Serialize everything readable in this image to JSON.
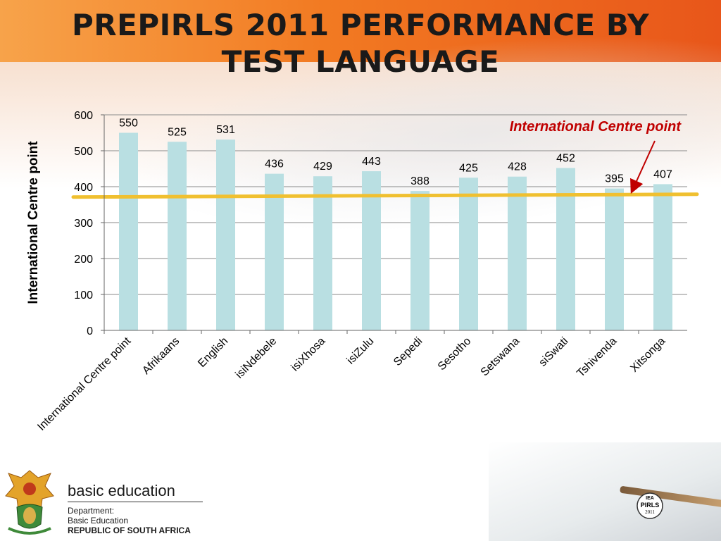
{
  "slide": {
    "title_line1": "PREPIRLS 2011 PERFORMANCE BY",
    "title_line2": "TEST LANGUAGE"
  },
  "chart_data": {
    "type": "bar",
    "title": "",
    "ylabel": "International Centre point",
    "xlabel": "",
    "ylim": [
      0,
      600
    ],
    "yticks": [
      0,
      100,
      200,
      300,
      400,
      500,
      600
    ],
    "grid": true,
    "categories": [
      "International Centre point",
      "Afrikaans",
      "English",
      "isiNdebele",
      "isiXhosa",
      "isiZulu",
      "Sepedi",
      "Sesotho",
      "Setswana",
      "siSwati",
      "Tshivenda",
      "Xitsonga"
    ],
    "series": [
      {
        "values": [
          550,
          525,
          531,
          436,
          429,
          443,
          388,
          425,
          428,
          452,
          395,
          407
        ]
      }
    ],
    "bar_color": "#b9dfe2",
    "reference_line": {
      "value": 375,
      "color": "#f0c030"
    },
    "annotation": {
      "text": "International Centre point",
      "color": "#c00000"
    }
  },
  "footer": {
    "org_title": "basic education",
    "dept_line1": "Department:",
    "dept_line2": "Basic Education",
    "country": "REPUBLIC OF SOUTH AFRICA",
    "pirls_logo_line1": "IEA",
    "pirls_logo_line2": "PIRLS",
    "pirls_logo_line3": "2011"
  }
}
